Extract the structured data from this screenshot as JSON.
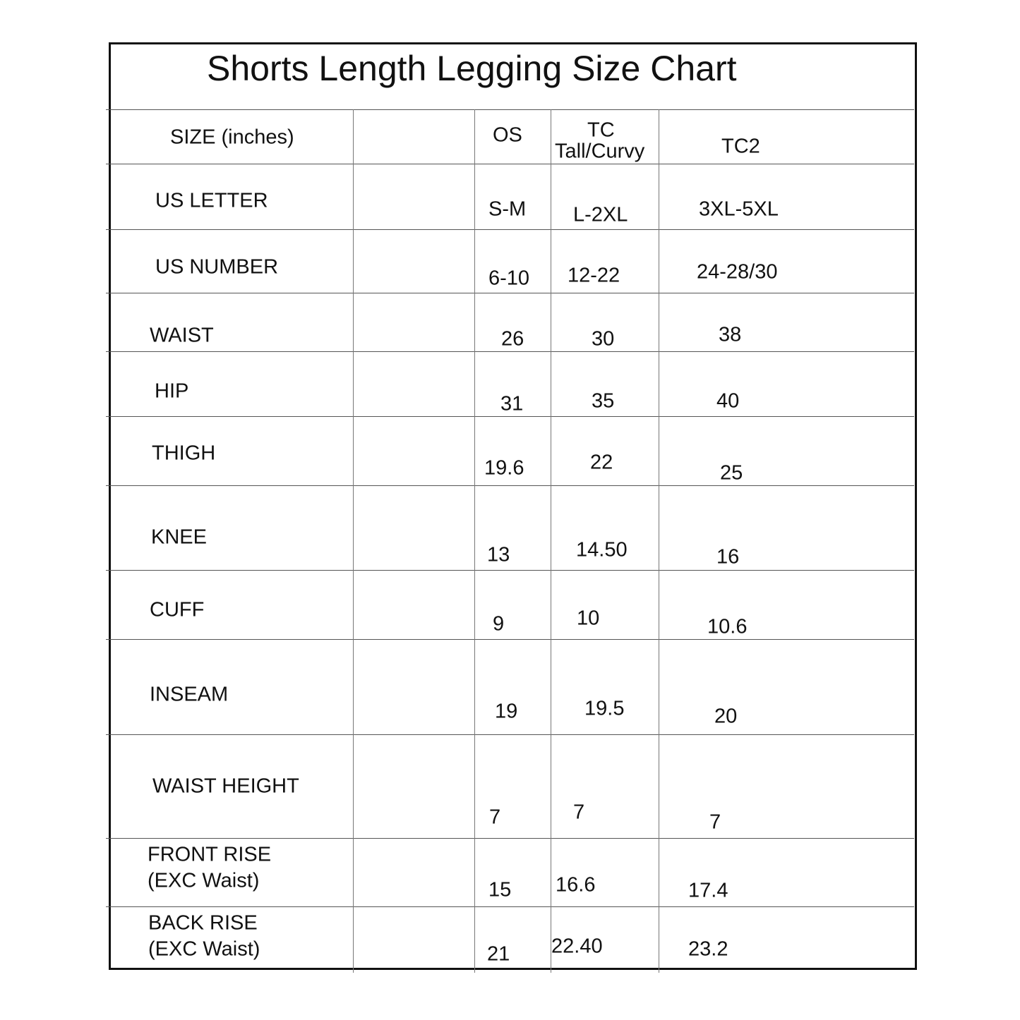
{
  "title": "Shorts Length Legging Size Chart",
  "header": {
    "label": "SIZE (inches)",
    "columns": [
      {
        "line1": "OS",
        "line2": ""
      },
      {
        "line1": "TC",
        "line2": "Tall/Curvy"
      },
      {
        "line1": "TC2",
        "line2": ""
      }
    ]
  },
  "rows": [
    {
      "label": [
        "US LETTER"
      ],
      "values": [
        "S-M",
        "L-2XL",
        "3XL-5XL"
      ]
    },
    {
      "label": [
        "US NUMBER"
      ],
      "values": [
        "6-10",
        "12-22",
        "24-28/30"
      ]
    },
    {
      "label": [
        "WAIST"
      ],
      "values": [
        "26",
        "30",
        "38"
      ]
    },
    {
      "label": [
        "HIP"
      ],
      "values": [
        "31",
        "35",
        "40"
      ]
    },
    {
      "label": [
        "THIGH"
      ],
      "values": [
        "19.6",
        "22",
        "25"
      ]
    },
    {
      "label": [
        "KNEE"
      ],
      "values": [
        "13",
        "14.50",
        "16"
      ]
    },
    {
      "label": [
        "CUFF"
      ],
      "values": [
        "9",
        "10",
        "10.6"
      ]
    },
    {
      "label": [
        "INSEAM"
      ],
      "values": [
        "19",
        "19.5",
        "20"
      ]
    },
    {
      "label": [
        "WAIST HEIGHT"
      ],
      "values": [
        "7",
        "7",
        "7"
      ]
    },
    {
      "label": [
        "FRONT RISE",
        "(EXC Waist)"
      ],
      "values": [
        "15",
        "16.6",
        "17.4"
      ]
    },
    {
      "label": [
        "BACK RISE",
        "(EXC Waist)"
      ],
      "values": [
        "21",
        "22.40",
        "23.2"
      ]
    }
  ]
}
